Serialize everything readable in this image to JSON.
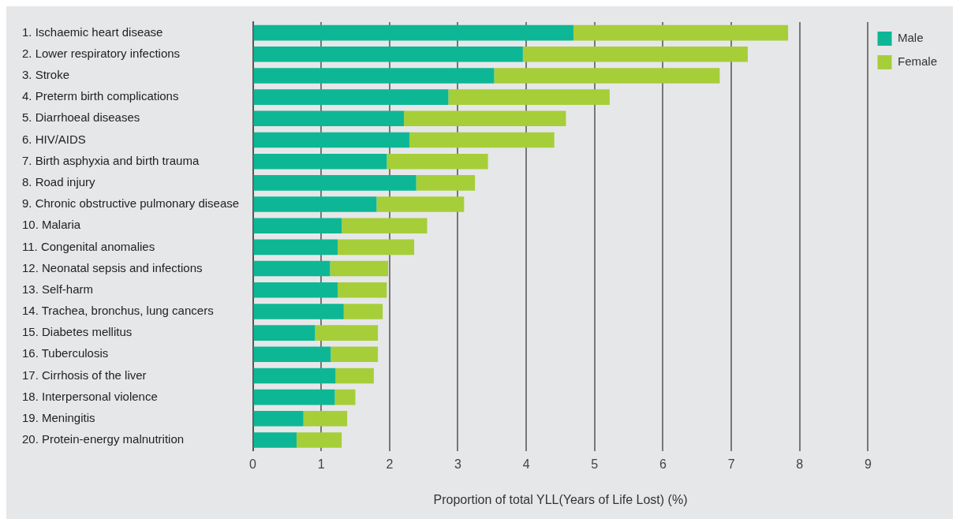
{
  "chart_data": {
    "type": "bar",
    "orientation": "horizontal",
    "stacked": true,
    "xlabel": "Proportion of total YLL(Years of Life Lost) (%)",
    "categories": [
      "1. Ischaemic heart disease",
      "2. Lower respiratory infections",
      "3. Stroke",
      "4. Preterm birth complications",
      "5. Diarrhoeal diseases",
      "6. HIV/AIDS",
      "7. Birth asphyxia and birth trauma",
      "8. Road injury",
      "9. Chronic obstructive pulmonary disease",
      "10. Malaria",
      "11. Congenital anomalies",
      "12. Neonatal sepsis and infections",
      "13. Self-harm",
      "14. Trachea, bronchus, lung cancers",
      "15. Diabetes mellitus",
      "16. Tuberculosis",
      "17. Cirrhosis of the liver",
      "18. Interpersonal violence",
      "19. Meningitis",
      "20. Protein-energy malnutrition"
    ],
    "series": [
      {
        "name": "Male",
        "color": "#0db795",
        "values": [
          4.69,
          3.95,
          3.53,
          2.86,
          2.21,
          2.29,
          1.96,
          2.39,
          1.81,
          1.3,
          1.24,
          1.13,
          1.24,
          1.33,
          0.91,
          1.14,
          1.21,
          1.2,
          0.74,
          0.64
        ]
      },
      {
        "name": "Female",
        "color": "#a6ce39",
        "values": [
          3.14,
          3.29,
          3.3,
          2.36,
          2.37,
          2.12,
          1.48,
          0.86,
          1.28,
          1.25,
          1.12,
          0.85,
          0.72,
          0.57,
          0.92,
          0.69,
          0.56,
          0.3,
          0.64,
          0.66
        ]
      }
    ],
    "xlim": [
      0,
      9
    ],
    "xticks": [
      0,
      1,
      2,
      3,
      4,
      5,
      6,
      7,
      8,
      9
    ],
    "grid": "x",
    "legend": "top right"
  }
}
